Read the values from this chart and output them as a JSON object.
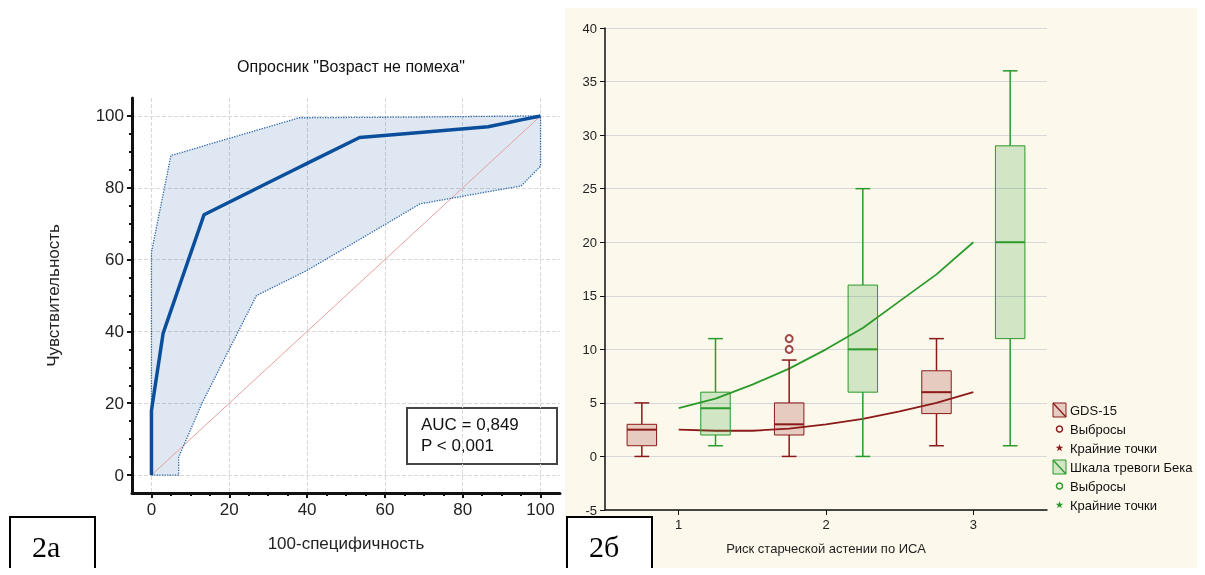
{
  "chart_data": [
    {
      "type": "line",
      "title": "Опросник \"Возраст не помеха\"",
      "xlabel": "100-специфичность",
      "ylabel": "Чувствительность",
      "xlim": [
        -5,
        105
      ],
      "ylim": [
        -5,
        105
      ],
      "xticks": [
        0,
        20,
        40,
        60,
        80,
        100
      ],
      "yticks": [
        0,
        20,
        40,
        60,
        80,
        100
      ],
      "grid": true,
      "marker": "none",
      "annotations": [
        "AUC = 0,849",
        "P < 0,001",
        "2а"
      ],
      "series": [
        {
          "color": "#0b4f9c",
          "line_style": "solid",
          "x": [
            0,
            0,
            3,
            5,
            7,
            7,
            13,
            13.5,
            27,
            38,
            40,
            53.5,
            69,
            86.5,
            95,
            100,
            100
          ],
          "values": [
            0,
            18,
            39.5,
            45.8,
            52.1,
            52.1,
            70.9,
            72.5,
            79.8,
            85.7,
            86.8,
            94,
            95.4,
            97,
            98.9,
            100,
            100
          ],
          "lower": [
            0,
            0,
            0,
            0,
            0,
            5,
            20,
            21.1,
            50,
            55.9,
            57,
            65.6,
            75.5,
            78.9,
            80.5,
            86,
            100
          ],
          "upper": [
            0,
            62,
            78.2,
            89,
            89.6,
            89.6,
            91.5,
            91.7,
            96,
            99.5,
            99.5,
            99.6,
            99.7,
            99.9,
            100,
            100,
            100
          ]
        },
        {
          "color": "#e8a0a0",
          "line_style": "solid",
          "x": [
            0,
            100
          ],
          "values": [
            0,
            100
          ]
        }
      ]
    },
    {
      "type": "box",
      "xlabel": "Риск старческой астении по ИСА",
      "xlim": [
        0.5,
        3.5
      ],
      "ylim": [
        -5,
        40
      ],
      "xticks": [
        1,
        2,
        3
      ],
      "yticks": [
        -5,
        0,
        5,
        10,
        15,
        20,
        25,
        30,
        35,
        40
      ],
      "grid": "y",
      "legend": "right",
      "marker": "none",
      "annotations": [
        "2б"
      ],
      "series": [
        {
          "name": "GDS-15",
          "type": "box",
          "color": "#8b1a1a",
          "x": [
            0.75,
            1.75,
            2.75
          ],
          "boxes": [
            {
              "low": 0,
              "q1": 1,
              "median": 2.5,
              "q3": 3,
              "high": 5
            },
            {
              "low": 0,
              "q1": 2,
              "median": 3,
              "q3": 5,
              "high": 9
            },
            {
              "low": 1,
              "q1": 4,
              "median": 6,
              "q3": 8,
              "high": 11
            }
          ]
        },
        {
          "name": "Выбросы",
          "type": "scatter",
          "marker": "circle",
          "color": "#8b1a1a",
          "x": [
            1.75,
            1.75
          ],
          "values": [
            10,
            11
          ]
        },
        {
          "name": "Крайние точки",
          "type": "scatter",
          "marker": "star",
          "color": "#8b1a1a"
        },
        {
          "name": "Шкала тревоги Бека",
          "type": "box",
          "color": "#2a9a2a",
          "x": [
            1.25,
            2.25,
            3.25
          ],
          "boxes": [
            {
              "low": 1,
              "q1": 2,
              "median": 4.5,
              "q3": 6,
              "high": 11
            },
            {
              "low": 0,
              "q1": 6,
              "median": 10,
              "q3": 16,
              "high": 25
            },
            {
              "low": 1,
              "q1": 11,
              "median": 20,
              "q3": 29,
              "high": 36
            }
          ]
        },
        {
          "name": "Выбросы",
          "type": "scatter",
          "marker": "circle",
          "color": "#2a9a2a"
        },
        {
          "name": "Крайние точки",
          "type": "scatter",
          "marker": "star",
          "color": "#2a9a2a"
        },
        {
          "type": "line",
          "color": "#8b1a1a",
          "x": [
            1,
            1.25,
            1.5,
            1.75,
            2,
            2.25,
            2.5,
            2.75,
            3
          ],
          "values": [
            2.5,
            2.4,
            2.4,
            2.6,
            3.0,
            3.5,
            4.2,
            5.0,
            6.0
          ]
        },
        {
          "type": "line",
          "color": "#2a9a2a",
          "x": [
            1,
            1.25,
            1.5,
            1.75,
            2,
            2.25,
            2.5,
            2.75,
            3
          ],
          "values": [
            4.5,
            5.4,
            6.7,
            8.2,
            10,
            12,
            14.5,
            17,
            20
          ]
        }
      ]
    }
  ]
}
